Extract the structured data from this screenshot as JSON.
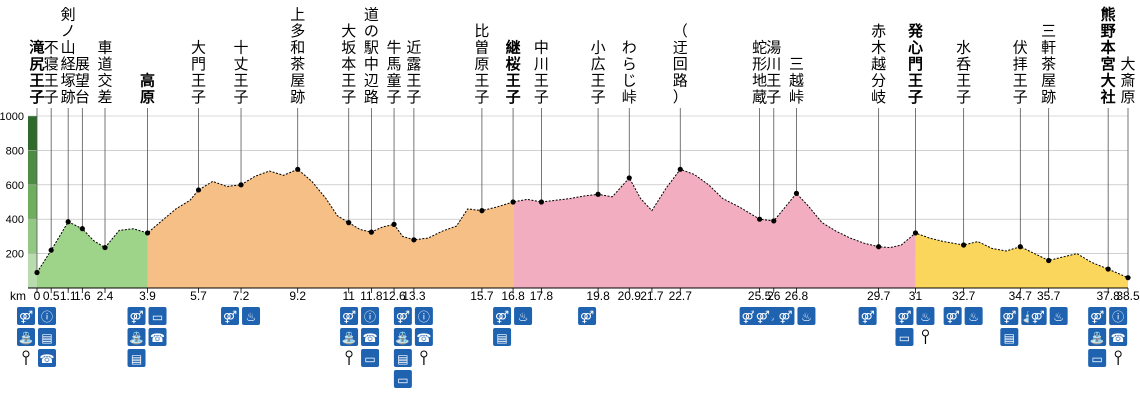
{
  "chart_data": {
    "type": "area",
    "x_unit": "km",
    "ylim": [
      0,
      1000
    ],
    "y_ticks": [
      200,
      400,
      600,
      800,
      1000
    ],
    "profile": [
      [
        0,
        90
      ],
      [
        0.5,
        220
      ],
      [
        1.1,
        385
      ],
      [
        1.6,
        345
      ],
      [
        2.0,
        275
      ],
      [
        2.4,
        235
      ],
      [
        2.9,
        335
      ],
      [
        3.4,
        345
      ],
      [
        3.9,
        320
      ],
      [
        4.4,
        390
      ],
      [
        4.9,
        460
      ],
      [
        5.4,
        510
      ],
      [
        5.7,
        570
      ],
      [
        6.2,
        620
      ],
      [
        6.7,
        590
      ],
      [
        7.2,
        600
      ],
      [
        7.7,
        650
      ],
      [
        8.2,
        680
      ],
      [
        8.7,
        655
      ],
      [
        9.2,
        690
      ],
      [
        9.7,
        620
      ],
      [
        10.2,
        520
      ],
      [
        10.6,
        420
      ],
      [
        11,
        380
      ],
      [
        11.4,
        340
      ],
      [
        11.8,
        325
      ],
      [
        12.2,
        355
      ],
      [
        12.6,
        370
      ],
      [
        12.9,
        300
      ],
      [
        13.3,
        280
      ],
      [
        13.8,
        290
      ],
      [
        14.3,
        330
      ],
      [
        14.8,
        360
      ],
      [
        15.2,
        460
      ],
      [
        15.7,
        450
      ],
      [
        16.2,
        470
      ],
      [
        16.8,
        500
      ],
      [
        17.3,
        515
      ],
      [
        17.8,
        500
      ],
      [
        18.3,
        510
      ],
      [
        18.8,
        520
      ],
      [
        19.3,
        535
      ],
      [
        19.8,
        545
      ],
      [
        20.3,
        530
      ],
      [
        20.9,
        640
      ],
      [
        21.3,
        520
      ],
      [
        21.7,
        450
      ],
      [
        22.2,
        580
      ],
      [
        22.7,
        690
      ],
      [
        23.2,
        660
      ],
      [
        23.7,
        600
      ],
      [
        24.2,
        520
      ],
      [
        24.8,
        470
      ],
      [
        25.5,
        400
      ],
      [
        26,
        390
      ],
      [
        26.4,
        470
      ],
      [
        26.8,
        550
      ],
      [
        27.2,
        480
      ],
      [
        27.7,
        380
      ],
      [
        28.2,
        330
      ],
      [
        28.7,
        290
      ],
      [
        29.2,
        260
      ],
      [
        29.7,
        240
      ],
      [
        30.1,
        235
      ],
      [
        30.5,
        250
      ],
      [
        31,
        320
      ],
      [
        31.5,
        290
      ],
      [
        32.0,
        270
      ],
      [
        32.7,
        250
      ],
      [
        33.2,
        270
      ],
      [
        33.7,
        230
      ],
      [
        34.2,
        215
      ],
      [
        34.7,
        240
      ],
      [
        35.2,
        200
      ],
      [
        35.7,
        160
      ],
      [
        36.2,
        180
      ],
      [
        36.7,
        200
      ],
      [
        37.2,
        150
      ],
      [
        37.8,
        110
      ],
      [
        38.5,
        60
      ]
    ],
    "segments": [
      {
        "from": 0,
        "to": 3.9,
        "color": "#9ed489"
      },
      {
        "from": 3.9,
        "to": 16.8,
        "color": "#f5bf85"
      },
      {
        "from": 16.8,
        "to": 31,
        "color": "#f2aec0"
      },
      {
        "from": 31,
        "to": 38.5,
        "color": "#fbd65c"
      }
    ],
    "waypoints": [
      {
        "name": "滝尻王子",
        "km": 0,
        "label_x": "0",
        "bold": true,
        "fields": [
          "toilet",
          "info",
          "water"
        ],
        "extras": [
          "smartphone"
        ]
      },
      {
        "name": "不寝王子",
        "km": 0.5,
        "label_x": "0.5"
      },
      {
        "name": "剣ノ山経塚跡",
        "km": 1.1,
        "label_x": "1.1"
      },
      {
        "name": "展望台",
        "km": 1.6,
        "label_x": "1.6"
      },
      {
        "name": "車道交差",
        "km": 2.4,
        "label_x": "2.4"
      },
      {
        "name": "高原",
        "km": 3.9,
        "label_x": "3.9",
        "bold": true
      },
      {
        "name": "大門王子",
        "km": 5.7,
        "label_x": "5.7"
      },
      {
        "name": "十丈王子",
        "km": 7.2,
        "label_x": "7.2"
      },
      {
        "name": "上多和茶屋跡",
        "km": 9.2,
        "label_x": "9.2"
      },
      {
        "name": "大坂本王子",
        "km": 11,
        "label_x": "11"
      },
      {
        "name": "道の駅中辺路",
        "km": 11.8,
        "label_x": "11.8"
      },
      {
        "name": "牛馬童子",
        "km": 12.6,
        "label_x": "12.6"
      },
      {
        "name": "近露王子",
        "km": 13.3,
        "label_x": "13.3"
      },
      {
        "name": "比曽原王子",
        "km": 15.7,
        "label_x": "15.7"
      },
      {
        "name": "継桜王子",
        "km": 16.8,
        "label_x": "16.8",
        "bold": true
      },
      {
        "name": "中川王子",
        "km": 17.8,
        "label_x": "17.8"
      },
      {
        "name": "小広王子",
        "km": 19.8,
        "label_x": "19.8"
      },
      {
        "name": "わらじ峠",
        "km": 20.9,
        "label_x": "20.9"
      },
      {
        "name": "（迂回路）",
        "km": 22.7,
        "label_x": "22.7"
      },
      {
        "name": "蛇形地蔵",
        "km": 25.5,
        "label_x": "25.5"
      },
      {
        "name": "湯川王子",
        "km": 26,
        "label_x": "26"
      },
      {
        "name": "三越峠",
        "km": 26.8,
        "label_x": "26.8"
      },
      {
        "name": "赤木越分岐",
        "km": 29.7,
        "label_x": "29.7"
      },
      {
        "name": "発心門王子",
        "km": 31,
        "label_x": "31",
        "bold": true
      },
      {
        "name": "水呑王子",
        "km": 32.7,
        "label_x": "32.7"
      },
      {
        "name": "伏拝王子",
        "km": 34.7,
        "label_x": "34.7"
      },
      {
        "name": "三軒茶屋跡",
        "km": 35.7,
        "label_x": "35.7"
      },
      {
        "name": "熊野本宮大社",
        "km": 37.8,
        "label_x": "37.8",
        "bold": true
      },
      {
        "name": "大斎原",
        "km": 38.5,
        "label_x": "38.5"
      }
    ],
    "extra_ticks": [
      {
        "km": 21.7,
        "label": "21.7"
      },
      {
        "km": 38.5,
        "label": "38.5"
      }
    ],
    "facility_groups": [
      {
        "km": 0,
        "icons": [
          "toilet",
          "info",
          "water",
          "bus",
          "pin",
          "phone"
        ]
      },
      {
        "km": 3.9,
        "icons": [
          "toilet",
          "phone-card",
          "water",
          "phone",
          "bus"
        ]
      },
      {
        "km": 7.2,
        "icons": [
          "toilet",
          "rest"
        ]
      },
      {
        "km": 11.4,
        "icons": [
          "toilet",
          "info",
          "water",
          "phone",
          "pin",
          "phone-card"
        ]
      },
      {
        "km": 13.3,
        "icons": [
          "toilet",
          "info",
          "water",
          "phone",
          "bus",
          "pin",
          "phone-card"
        ]
      },
      {
        "km": 16.8,
        "icons": [
          "toilet",
          "rest",
          "bus"
        ]
      },
      {
        "km": 19.8,
        "icons": [
          "toilet"
        ]
      },
      {
        "km": 25.5,
        "icons": [
          "toilet",
          "rest"
        ]
      },
      {
        "km": 26,
        "icons": [
          "toilet"
        ]
      },
      {
        "km": 26.8,
        "icons": [
          "toilet",
          "rest"
        ]
      },
      {
        "km": 29.7,
        "icons": [
          "toilet"
        ]
      },
      {
        "km": 31,
        "icons": [
          "toilet",
          "rest",
          "phone-card",
          "pin"
        ]
      },
      {
        "km": 32.7,
        "icons": [
          "toilet",
          "rest"
        ]
      },
      {
        "km": 34.7,
        "icons": [
          "toilet",
          "water",
          "bus"
        ]
      },
      {
        "km": 35.7,
        "icons": [
          "toilet",
          "rest"
        ]
      },
      {
        "km": 37.8,
        "icons": [
          "toilet",
          "info",
          "water",
          "phone",
          "phone-card",
          "pin"
        ]
      }
    ],
    "km_label": "km",
    "colors": {
      "icon_bg": "#1f62b0",
      "icon_fg": "#ffffff",
      "line": "#000000"
    }
  }
}
